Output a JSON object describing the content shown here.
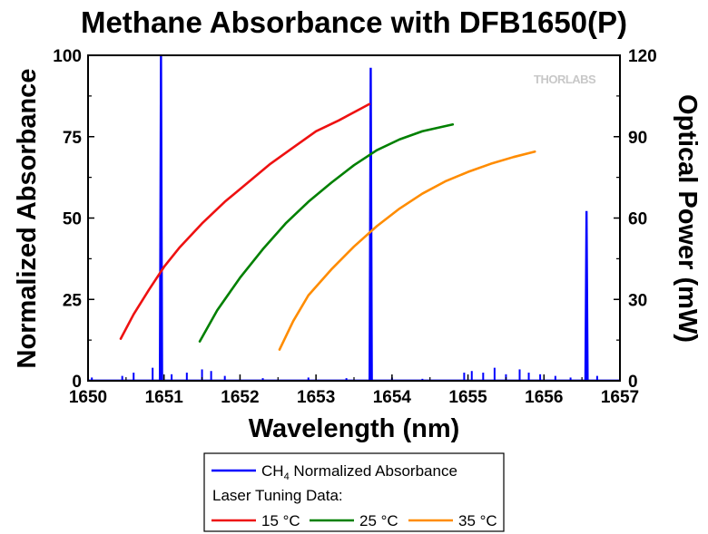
{
  "chart_data": {
    "type": "line",
    "title": "Methane Absorbance with DFB1650(P)",
    "xlabel": "Wavelength (nm)",
    "ylabel_left": "Normalized Absorbance",
    "ylabel_right": "Optical Power (mW)",
    "xlim": [
      1650,
      1657
    ],
    "ylim_left": [
      0,
      100
    ],
    "ylim_right": [
      0,
      120
    ],
    "x_ticks": [
      "1650",
      "1651",
      "1652",
      "1653",
      "1654",
      "1655",
      "1656",
      "1657"
    ],
    "y_left_ticks": [
      "0",
      "25",
      "50",
      "75",
      "100"
    ],
    "y_right_ticks": [
      "0",
      "30",
      "60",
      "90",
      "120"
    ],
    "watermark": "THORLABS",
    "legend": {
      "absorbance_prefix": "CH",
      "absorbance_sub": "4",
      "absorbance_suffix": " Normalized Absorbance",
      "tuning_heading": "Laser Tuning Data:",
      "entries": [
        "15 °C",
        "25 °C",
        "35 °C"
      ]
    },
    "absorbance": {
      "name": "CH4 Normalized Absorbance",
      "color": "#0000ff",
      "axis": "left",
      "peaks": [
        {
          "x": 1650.96,
          "y": 100
        },
        {
          "x": 1653.72,
          "y": 96
        },
        {
          "x": 1656.56,
          "y": 52
        }
      ],
      "minor_peaks": [
        {
          "x": 1650.05,
          "y": 1.0
        },
        {
          "x": 1650.45,
          "y": 1.5
        },
        {
          "x": 1650.6,
          "y": 2.5
        },
        {
          "x": 1650.85,
          "y": 4.0
        },
        {
          "x": 1651.1,
          "y": 2.0
        },
        {
          "x": 1651.3,
          "y": 2.5
        },
        {
          "x": 1651.5,
          "y": 3.5
        },
        {
          "x": 1651.62,
          "y": 3.0
        },
        {
          "x": 1651.8,
          "y": 1.5
        },
        {
          "x": 1652.3,
          "y": 0.8
        },
        {
          "x": 1652.9,
          "y": 1.0
        },
        {
          "x": 1653.4,
          "y": 0.8
        },
        {
          "x": 1654.0,
          "y": 1.0
        },
        {
          "x": 1654.4,
          "y": 0.6
        },
        {
          "x": 1654.95,
          "y": 2.5
        },
        {
          "x": 1655.05,
          "y": 3.0
        },
        {
          "x": 1655.2,
          "y": 2.5
        },
        {
          "x": 1655.35,
          "y": 4.0
        },
        {
          "x": 1655.5,
          "y": 2.0
        },
        {
          "x": 1655.68,
          "y": 3.5
        },
        {
          "x": 1655.8,
          "y": 2.5
        },
        {
          "x": 1655.95,
          "y": 2.0
        },
        {
          "x": 1656.15,
          "y": 1.5
        },
        {
          "x": 1656.35,
          "y": 1.0
        },
        {
          "x": 1656.7,
          "y": 1.5
        }
      ]
    },
    "series": [
      {
        "name": "15 °C",
        "color": "#ee1111",
        "axis": "right",
        "x": [
          1650.43,
          1650.6,
          1650.8,
          1651.0,
          1651.2,
          1651.5,
          1651.8,
          1652.1,
          1652.4,
          1652.7,
          1653.0,
          1653.3,
          1653.6,
          1653.7
        ],
        "y": [
          15.5,
          24.5,
          33.5,
          42.0,
          49.0,
          58.0,
          66.0,
          73.0,
          80.0,
          86.0,
          92.0,
          96.0,
          100.5,
          102.0
        ]
      },
      {
        "name": "25 °C",
        "color": "#008000",
        "axis": "right",
        "x": [
          1651.47,
          1651.7,
          1652.0,
          1652.3,
          1652.6,
          1652.9,
          1653.2,
          1653.5,
          1653.8,
          1654.1,
          1654.4,
          1654.8
        ],
        "y": [
          14.5,
          26.0,
          38.0,
          48.5,
          58.0,
          66.0,
          73.0,
          79.5,
          85.0,
          89.0,
          92.0,
          94.5
        ]
      },
      {
        "name": "35 °C",
        "color": "#ff8c00",
        "axis": "right",
        "x": [
          1652.52,
          1652.7,
          1652.9,
          1653.2,
          1653.5,
          1653.8,
          1654.1,
          1654.4,
          1654.7,
          1655.0,
          1655.3,
          1655.6,
          1655.88
        ],
        "y": [
          11.5,
          22.0,
          31.5,
          41.0,
          49.5,
          57.0,
          63.5,
          69.0,
          73.5,
          77.0,
          80.0,
          82.5,
          84.5
        ]
      }
    ]
  }
}
